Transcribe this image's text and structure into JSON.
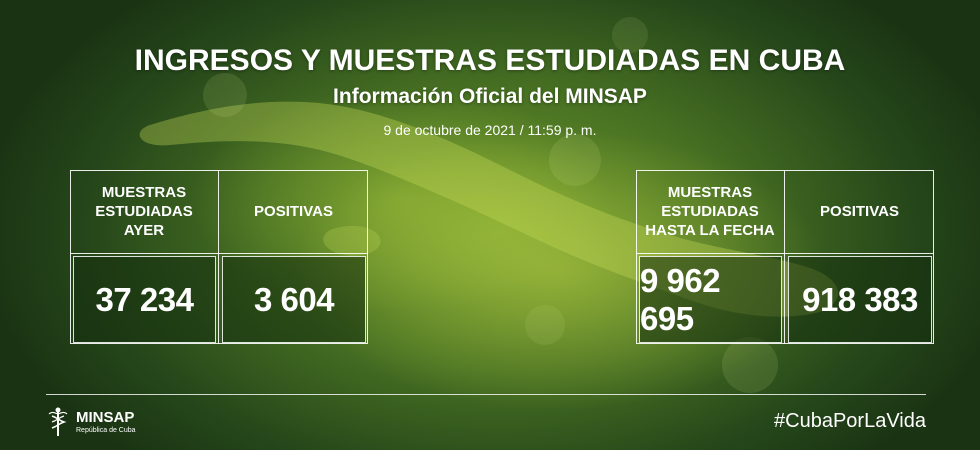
{
  "title": "INGRESOS Y MUESTRAS ESTUDIADAS EN CUBA",
  "subtitle": "Información Oficial del MINSAP",
  "date": "9 de octubre de 2021 / 11:59 p. m.",
  "left_panel": {
    "header_1": "MUESTRAS\nESTUDIADAS\nAYER",
    "header_2": "POSITIVAS",
    "value_1": "37 234",
    "value_2": "3 604"
  },
  "right_panel": {
    "header_1": "MUESTRAS\nESTUDIADAS\nHASTA LA FECHA",
    "header_2": "POSITIVAS",
    "value_1": "9 962 695",
    "value_2": "918 383"
  },
  "footer": {
    "logo_name": "MINSAP",
    "logo_sub": "República de Cuba",
    "logo_icon": "caduceus-icon",
    "hashtag": "#CubaPorLaVida"
  },
  "colors": {
    "background_dark": "#1a3413",
    "background_mid": "#466f22",
    "map_highlight": "#b7cf4a",
    "text": "#ffffff"
  }
}
